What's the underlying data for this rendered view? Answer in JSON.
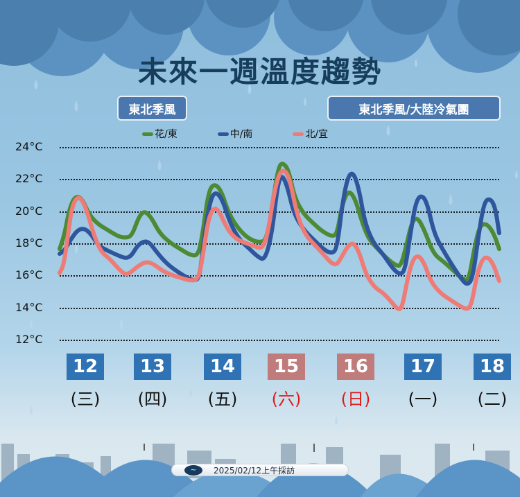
{
  "header": {
    "title": "未來一週溫度趨勢",
    "tag_left": "東北季風",
    "tag_right": "東北季風/大陸冷氣團"
  },
  "legend": [
    {
      "label": "花/東",
      "color": "#4d8a34"
    },
    {
      "label": "中/南",
      "color": "#2f569c"
    },
    {
      "label": "北/宜",
      "color": "#ee7b76"
    }
  ],
  "y_axis": {
    "ticks": [
      "24°C",
      "22°C",
      "20°C",
      "18°C",
      "16°C",
      "14°C",
      "12°C"
    ]
  },
  "days": [
    {
      "date": "12",
      "weekday": "(三)",
      "weekend": false
    },
    {
      "date": "13",
      "weekday": "(四)",
      "weekend": false
    },
    {
      "date": "14",
      "weekday": "(五)",
      "weekend": false
    },
    {
      "date": "15",
      "weekday": "(六)",
      "weekend": true
    },
    {
      "date": "16",
      "weekday": "(日)",
      "weekend": true
    },
    {
      "date": "17",
      "weekday": "(一)",
      "weekend": false
    },
    {
      "date": "18",
      "weekday": "(二)",
      "weekend": false
    }
  ],
  "colors": {
    "weekday_box": "#2f73b5",
    "weekend_box": "#c07b7b",
    "weekday_text": "#111111",
    "weekend_text": "#e01b1b"
  },
  "footer": {
    "text": "2025/02/12上午採訪"
  },
  "chart_data": {
    "type": "line",
    "title": "未來一週溫度趨勢",
    "xlabel": "",
    "ylabel": "°C",
    "ylim": [
      12,
      24
    ],
    "y_ticks": [
      12,
      14,
      16,
      18,
      20,
      22,
      24
    ],
    "grid": true,
    "legend_position": "top",
    "categories": [
      "12(三)",
      "13(四)",
      "14(五)",
      "15(六)",
      "16(日)",
      "17(一)",
      "18(二)"
    ],
    "series_summary": [
      {
        "name": "花/東",
        "daily_high": [
          21.0,
          20.0,
          21.7,
          23.0,
          21.3,
          19.6,
          19.2
        ],
        "daily_low": [
          17.6,
          18.2,
          17.2,
          18.2,
          18.5,
          16.5,
          15.6
        ]
      },
      {
        "name": "中/南",
        "daily_high": [
          18.9,
          18.1,
          21.2,
          22.3,
          22.4,
          21.0,
          20.8
        ],
        "daily_low": [
          17.3,
          17.0,
          15.6,
          16.9,
          17.3,
          16.0,
          15.3
        ]
      },
      {
        "name": "北/宜",
        "daily_high": [
          20.9,
          16.8,
          20.2,
          22.6,
          18.0,
          17.2,
          17.1
        ],
        "daily_low": [
          16.1,
          16.0,
          15.6,
          17.6,
          16.6,
          13.8,
          13.8
        ]
      }
    ],
    "series": [
      {
        "name": "花/東",
        "color": "#4d8a34",
        "points": [
          [
            86,
            17.6
          ],
          [
            93,
            18.5
          ],
          [
            100,
            20.1
          ],
          [
            108,
            20.9
          ],
          [
            118,
            20.8
          ],
          [
            128,
            19.8
          ],
          [
            140,
            19.2
          ],
          [
            155,
            18.8
          ],
          [
            170,
            18.4
          ],
          [
            180,
            18.3
          ],
          [
            190,
            18.4
          ],
          [
            200,
            19.6
          ],
          [
            208,
            20.0
          ],
          [
            218,
            19.6
          ],
          [
            230,
            18.6
          ],
          [
            245,
            18.0
          ],
          [
            260,
            17.6
          ],
          [
            275,
            17.2
          ],
          [
            286,
            17.2
          ],
          [
            292,
            18.5
          ],
          [
            300,
            21.0
          ],
          [
            307,
            21.7
          ],
          [
            318,
            21.4
          ],
          [
            330,
            19.8
          ],
          [
            345,
            18.8
          ],
          [
            360,
            18.2
          ],
          [
            375,
            18.0
          ],
          [
            385,
            18.2
          ],
          [
            395,
            21.0
          ],
          [
            402,
            22.8
          ],
          [
            408,
            23.0
          ],
          [
            416,
            22.6
          ],
          [
            425,
            20.8
          ],
          [
            438,
            19.8
          ],
          [
            452,
            19.2
          ],
          [
            465,
            18.7
          ],
          [
            478,
            18.4
          ],
          [
            486,
            18.5
          ],
          [
            493,
            20.3
          ],
          [
            502,
            21.3
          ],
          [
            512,
            20.8
          ],
          [
            522,
            19.3
          ],
          [
            532,
            18.2
          ],
          [
            545,
            17.6
          ],
          [
            558,
            17.0
          ],
          [
            570,
            16.6
          ],
          [
            578,
            16.5
          ],
          [
            586,
            17.8
          ],
          [
            594,
            19.3
          ],
          [
            602,
            19.6
          ],
          [
            612,
            18.8
          ],
          [
            625,
            17.3
          ],
          [
            640,
            16.8
          ],
          [
            655,
            16.2
          ],
          [
            668,
            15.7
          ],
          [
            676,
            15.6
          ],
          [
            684,
            17.6
          ],
          [
            692,
            19.1
          ],
          [
            702,
            19.2
          ],
          [
            712,
            18.6
          ],
          [
            720,
            17.6
          ]
        ]
      },
      {
        "name": "中/南",
        "color": "#2f569c",
        "points": [
          [
            86,
            17.3
          ],
          [
            93,
            17.5
          ],
          [
            102,
            18.2
          ],
          [
            112,
            18.8
          ],
          [
            122,
            18.9
          ],
          [
            132,
            18.5
          ],
          [
            142,
            17.8
          ],
          [
            155,
            17.5
          ],
          [
            170,
            17.2
          ],
          [
            182,
            17.0
          ],
          [
            190,
            17.2
          ],
          [
            198,
            17.8
          ],
          [
            208,
            18.1
          ],
          [
            216,
            18.0
          ],
          [
            226,
            17.4
          ],
          [
            240,
            16.7
          ],
          [
            255,
            16.2
          ],
          [
            270,
            15.8
          ],
          [
            280,
            15.6
          ],
          [
            288,
            15.8
          ],
          [
            295,
            18.5
          ],
          [
            303,
            20.6
          ],
          [
            310,
            21.2
          ],
          [
            320,
            20.8
          ],
          [
            332,
            19.2
          ],
          [
            345,
            18.2
          ],
          [
            360,
            17.6
          ],
          [
            372,
            17.1
          ],
          [
            382,
            16.9
          ],
          [
            392,
            18.5
          ],
          [
            400,
            21.5
          ],
          [
            406,
            22.3
          ],
          [
            414,
            21.6
          ],
          [
            424,
            19.8
          ],
          [
            438,
            18.8
          ],
          [
            452,
            18.2
          ],
          [
            466,
            17.6
          ],
          [
            478,
            17.3
          ],
          [
            486,
            17.6
          ],
          [
            494,
            20.5
          ],
          [
            502,
            22.2
          ],
          [
            510,
            22.4
          ],
          [
            518,
            21.3
          ],
          [
            526,
            19.3
          ],
          [
            538,
            18.0
          ],
          [
            552,
            17.3
          ],
          [
            566,
            16.4
          ],
          [
            576,
            16.0
          ],
          [
            584,
            16.2
          ],
          [
            592,
            18.6
          ],
          [
            600,
            20.6
          ],
          [
            608,
            21.0
          ],
          [
            616,
            20.5
          ],
          [
            626,
            18.6
          ],
          [
            638,
            17.6
          ],
          [
            652,
            16.6
          ],
          [
            664,
            15.8
          ],
          [
            674,
            15.3
          ],
          [
            682,
            15.8
          ],
          [
            690,
            18.4
          ],
          [
            698,
            20.5
          ],
          [
            706,
            20.8
          ],
          [
            714,
            20.3
          ],
          [
            720,
            18.6
          ]
        ]
      },
      {
        "name": "北/宜",
        "color": "#ee7b76",
        "points": [
          [
            86,
            16.1
          ],
          [
            92,
            16.6
          ],
          [
            98,
            18.5
          ],
          [
            104,
            20.3
          ],
          [
            112,
            20.9
          ],
          [
            120,
            20.6
          ],
          [
            128,
            19.6
          ],
          [
            136,
            18.4
          ],
          [
            146,
            17.4
          ],
          [
            158,
            17.0
          ],
          [
            170,
            16.4
          ],
          [
            180,
            16.0
          ],
          [
            188,
            16.1
          ],
          [
            198,
            16.5
          ],
          [
            210,
            16.8
          ],
          [
            220,
            16.7
          ],
          [
            232,
            16.3
          ],
          [
            245,
            16.0
          ],
          [
            260,
            15.8
          ],
          [
            275,
            15.6
          ],
          [
            286,
            15.7
          ],
          [
            292,
            17.0
          ],
          [
            300,
            19.4
          ],
          [
            308,
            20.2
          ],
          [
            316,
            20.0
          ],
          [
            326,
            19.0
          ],
          [
            338,
            18.3
          ],
          [
            352,
            18.0
          ],
          [
            366,
            17.8
          ],
          [
            378,
            17.6
          ],
          [
            386,
            18.5
          ],
          [
            394,
            20.8
          ],
          [
            402,
            22.3
          ],
          [
            410,
            22.6
          ],
          [
            418,
            22.0
          ],
          [
            428,
            19.8
          ],
          [
            440,
            18.5
          ],
          [
            455,
            17.8
          ],
          [
            468,
            17.2
          ],
          [
            478,
            16.7
          ],
          [
            486,
            16.6
          ],
          [
            494,
            17.2
          ],
          [
            502,
            17.8
          ],
          [
            510,
            18.0
          ],
          [
            518,
            17.4
          ],
          [
            528,
            16.0
          ],
          [
            540,
            15.2
          ],
          [
            554,
            14.8
          ],
          [
            566,
            14.2
          ],
          [
            574,
            13.8
          ],
          [
            580,
            13.9
          ],
          [
            588,
            15.8
          ],
          [
            596,
            17.0
          ],
          [
            604,
            17.2
          ],
          [
            612,
            16.7
          ],
          [
            622,
            15.5
          ],
          [
            636,
            14.8
          ],
          [
            650,
            14.4
          ],
          [
            664,
            14.0
          ],
          [
            674,
            13.8
          ],
          [
            680,
            14.1
          ],
          [
            688,
            16.0
          ],
          [
            696,
            17.0
          ],
          [
            704,
            17.1
          ],
          [
            712,
            16.6
          ],
          [
            720,
            15.6
          ]
        ]
      }
    ]
  }
}
